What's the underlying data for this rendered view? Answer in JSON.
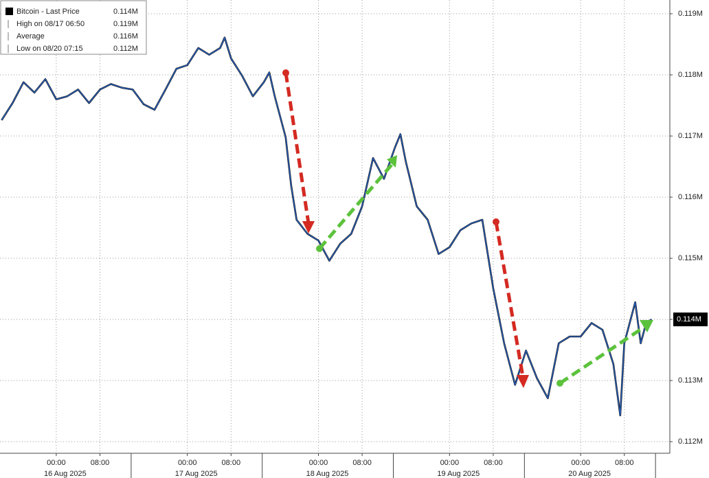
{
  "chart_data": {
    "type": "line",
    "series": [
      {
        "name": "Bitcoin - Last Price",
        "color": "#2a66c9",
        "x": [
          "2025-08-15 14:00",
          "2025-08-15 16:00",
          "2025-08-15 18:00",
          "2025-08-15 20:00",
          "2025-08-15 22:00",
          "2025-08-16 00:00",
          "2025-08-16 02:00",
          "2025-08-16 04:00",
          "2025-08-16 06:00",
          "2025-08-16 08:00",
          "2025-08-16 10:00",
          "2025-08-16 12:00",
          "2025-08-16 14:00",
          "2025-08-16 16:00",
          "2025-08-16 18:00",
          "2025-08-16 20:00",
          "2025-08-16 22:00",
          "2025-08-17 00:00",
          "2025-08-17 02:00",
          "2025-08-17 04:00",
          "2025-08-17 06:00",
          "2025-08-17 06:50",
          "2025-08-17 08:00",
          "2025-08-17 10:00",
          "2025-08-17 12:00",
          "2025-08-17 14:00",
          "2025-08-17 15:00",
          "2025-08-17 16:00",
          "2025-08-17 18:00",
          "2025-08-17 19:00",
          "2025-08-17 20:00",
          "2025-08-17 22:00",
          "2025-08-18 00:00",
          "2025-08-18 02:00",
          "2025-08-18 04:00",
          "2025-08-18 06:00",
          "2025-08-18 08:00",
          "2025-08-18 10:00",
          "2025-08-18 12:00",
          "2025-08-18 14:00",
          "2025-08-18 15:00",
          "2025-08-18 16:00",
          "2025-08-18 18:00",
          "2025-08-18 20:00",
          "2025-08-18 22:00",
          "2025-08-19 00:00",
          "2025-08-19 02:00",
          "2025-08-19 04:00",
          "2025-08-19 06:00",
          "2025-08-19 08:00",
          "2025-08-19 10:00",
          "2025-08-19 12:00",
          "2025-08-19 14:00",
          "2025-08-19 16:00",
          "2025-08-19 18:00",
          "2025-08-19 20:00",
          "2025-08-19 22:00",
          "2025-08-20 00:00",
          "2025-08-20 02:00",
          "2025-08-20 04:00",
          "2025-08-20 06:00",
          "2025-08-20 07:15",
          "2025-08-20 08:00",
          "2025-08-20 10:00",
          "2025-08-20 11:00",
          "2025-08-20 12:00",
          "2025-08-20 13:00"
        ],
        "values": [
          117260,
          117540,
          117880,
          117710,
          117930,
          117600,
          117650,
          117760,
          117540,
          117760,
          117850,
          117790,
          117760,
          117520,
          117430,
          117760,
          118100,
          118160,
          118440,
          118330,
          118440,
          118610,
          118270,
          117990,
          117650,
          117880,
          118040,
          117650,
          116980,
          116190,
          115630,
          115400,
          115290,
          114960,
          115240,
          115400,
          115850,
          116640,
          116300,
          116810,
          117030,
          116580,
          115850,
          115630,
          115070,
          115180,
          115460,
          115570,
          115630,
          114510,
          113610,
          112930,
          113490,
          113040,
          112710,
          113610,
          113720,
          113720,
          113940,
          113830,
          113270,
          112430,
          113610,
          114280,
          113610,
          113940,
          114000
        ]
      }
    ],
    "xlim": [
      "2025-08-15 13:42",
      "2025-08-20 16:20"
    ],
    "xticks": [
      {
        "value": "2025-08-16 00:00",
        "label": "00:00"
      },
      {
        "value": "2025-08-16 08:00",
        "label": "08:00"
      },
      {
        "value": "2025-08-17 00:00",
        "label": "00:00"
      },
      {
        "value": "2025-08-17 08:00",
        "label": "08:00"
      },
      {
        "value": "2025-08-18 00:00",
        "label": "00:00"
      },
      {
        "value": "2025-08-18 08:00",
        "label": "08:00"
      },
      {
        "value": "2025-08-19 00:00",
        "label": "00:00"
      },
      {
        "value": "2025-08-19 08:00",
        "label": "08:00"
      },
      {
        "value": "2025-08-20 00:00",
        "label": "00:00"
      },
      {
        "value": "2025-08-20 08:00",
        "label": "08:00"
      }
    ],
    "date_labels": [
      {
        "value": "2025-08-16 00:00",
        "label": "16 Aug 2025"
      },
      {
        "value": "2025-08-17 00:00",
        "label": "17 Aug 2025"
      },
      {
        "value": "2025-08-18 00:00",
        "label": "18 Aug 2025"
      },
      {
        "value": "2025-08-19 00:00",
        "label": "19 Aug 2025"
      },
      {
        "value": "2025-08-20 00:00",
        "label": "20 Aug 2025"
      }
    ],
    "ylim": [
      111810,
      119225
    ],
    "yticks": [
      {
        "value": 112000,
        "label": "0.112M"
      },
      {
        "value": 113000,
        "label": "0.113M"
      },
      {
        "value": 114000,
        "label": "0.114M"
      },
      {
        "value": 115000,
        "label": "0.115M"
      },
      {
        "value": 116000,
        "label": "0.116M"
      },
      {
        "value": 117000,
        "label": "0.117M"
      },
      {
        "value": 118000,
        "label": "0.118M"
      },
      {
        "value": 119000,
        "label": "0.119M"
      }
    ],
    "last_price": {
      "value": 114000,
      "label": "0.114M"
    },
    "grid": true,
    "legend": [
      {
        "name": "Bitcoin - Last Price",
        "text": "0.114M"
      },
      {
        "name": "High on 08/17 06:50",
        "text": "0.119M"
      },
      {
        "name": "Average",
        "text": "0.116M"
      },
      {
        "name": "Low on 08/20 07:15",
        "text": "0.112M"
      }
    ]
  }
}
